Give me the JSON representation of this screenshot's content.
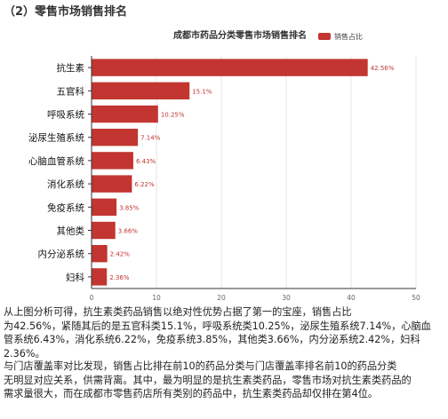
{
  "section_title": "（2）零售市场销售排名",
  "paragraphs": [
    "        从上图分析可得，抗生素类药品销售以绝对性优势占据了第一的宝座，销售占比\n为42.56%，紧随其后的是五官科类15.1%，呼吸系统类10.25%，泌尿生殖系统7.14%，心脑血\n管系统6.43%，消化系统6.22%，免疫系统3.85%，其他类3.66%，内分泌系统2.42%，妇科\n2.36%。",
    "        与门店覆盖率对比发现，销售占比排在前10的药品分类与门店覆盖率排名前10的药品分类\n无明显对应关系，供需背离。其中，最为明显的是抗生素类药品，零售市场对抗生素类药品的\n需求量很大，而在成都市零售药店所有类别的药品中，抗生素类药品却仅排在第4位。"
  ],
  "chart_data": {
    "type": "bar",
    "orientation": "horizontal",
    "title": "成都市药品分类零售市场销售排名",
    "legend": [
      "销售占比"
    ],
    "legend_position": "top",
    "categories": [
      "抗生素",
      "五官科",
      "呼吸系统",
      "泌尿生殖系统",
      "心脑血管系统",
      "消化系统",
      "免疫系统",
      "其他类",
      "内分泌系统",
      "妇科"
    ],
    "series": [
      {
        "name": "销售占比",
        "values": [
          42.56,
          15.1,
          10.25,
          7.14,
          6.43,
          6.22,
          3.85,
          3.66,
          2.42,
          2.36
        ],
        "labels": [
          "42.56%",
          "15.1%",
          "10.25%",
          "7.14%",
          "6.43%",
          "6.22%",
          "3.85%",
          "3.66%",
          "2.42%",
          "2.36%"
        ]
      }
    ],
    "xlim": [
      0,
      50
    ],
    "x_ticks": [
      0,
      10,
      20,
      30,
      40,
      50
    ],
    "grid": true,
    "color": "#c23531"
  }
}
